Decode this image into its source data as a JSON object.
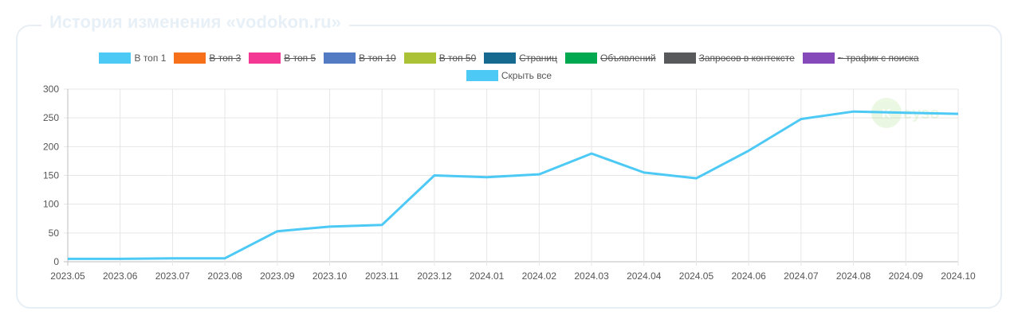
{
  "card": {
    "title": "История изменения «vodokon.ru»"
  },
  "legend": [
    {
      "label": "В топ 1",
      "color": "#4dc9f6",
      "hidden": false
    },
    {
      "label": "В топ 3",
      "color": "#f67019",
      "hidden": true
    },
    {
      "label": "В топ 5",
      "color": "#f53794",
      "hidden": true
    },
    {
      "label": "В топ 10",
      "color": "#537bc4",
      "hidden": true
    },
    {
      "label": "В топ 50",
      "color": "#acc236",
      "hidden": true
    },
    {
      "label": "Страниц",
      "color": "#166a8f",
      "hidden": true
    },
    {
      "label": "Объявлений",
      "color": "#00a950",
      "hidden": true
    },
    {
      "label": "Запросов в контексте",
      "color": "#58595b",
      "hidden": true
    },
    {
      "label": "~ трафик с поиска",
      "color": "#8549ba",
      "hidden": true
    },
    {
      "label": "Скрыть все",
      "color": "#4dc9f6",
      "hidden": false
    }
  ],
  "chart_data": {
    "type": "line",
    "categories": [
      "2023.05",
      "2023.06",
      "2023.07",
      "2023.08",
      "2023.09",
      "2023.10",
      "2023.11",
      "2023.12",
      "2024.01",
      "2024.02",
      "2024.03",
      "2024.04",
      "2024.05",
      "2024.06",
      "2024.07",
      "2024.08",
      "2024.09",
      "2024.10"
    ],
    "series": [
      {
        "name": "В топ 1",
        "color": "#4dc9f6",
        "values": [
          5,
          5,
          6,
          6,
          53,
          61,
          64,
          150,
          147,
          152,
          188,
          155,
          145,
          193,
          248,
          261,
          259,
          257
        ]
      }
    ],
    "yticks": [
      0,
      50,
      100,
      150,
      200,
      250,
      300
    ],
    "ylim": [
      0,
      300
    ],
    "grid": true
  }
}
